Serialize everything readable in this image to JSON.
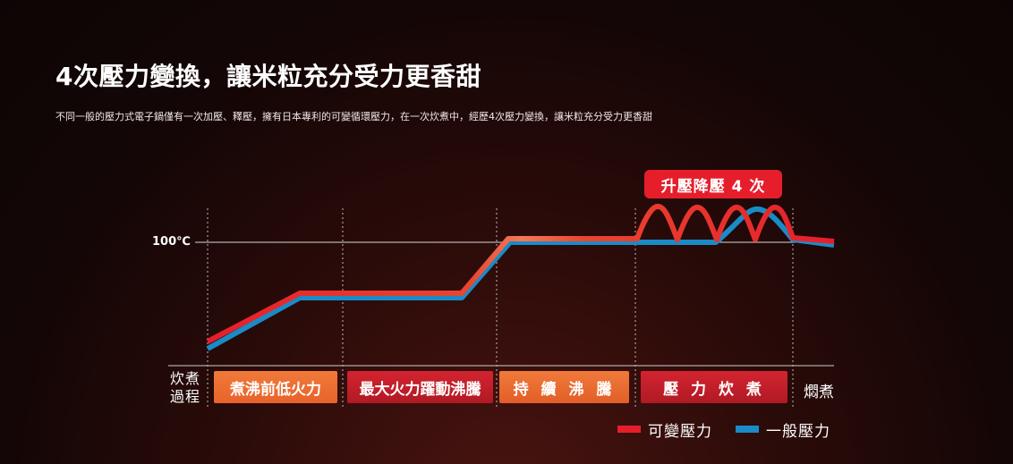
{
  "header": {
    "title": "4次壓力變換，讓米粒充分受力更香甜",
    "subtitle": "不同一般的壓力式電子鍋僅有一次加壓、釋壓，擁有日本專利的可變循環壓力，在一次炊煮中，經歷4次壓力變換，讓米粒充分受力更香甜"
  },
  "badge": {
    "label": "升壓降壓 4 次"
  },
  "chart_data": {
    "type": "line",
    "y_reference_label": "100℃",
    "process_label": "炊煮\n過程",
    "categories": [
      "煮沸前低火力",
      "最大火力躍動沸騰",
      "持 續 沸 騰",
      "壓 力 炊 煮",
      "燜煮"
    ],
    "series": [
      {
        "name": "可變壓力",
        "color": "#e61e2b"
      },
      {
        "name": "一般壓力",
        "color": "#1a8bc6"
      }
    ],
    "grid": false
  },
  "colors": {
    "variable": "#e61e2b",
    "normal": "#1a8bc6",
    "badge": "#e61e2b"
  }
}
